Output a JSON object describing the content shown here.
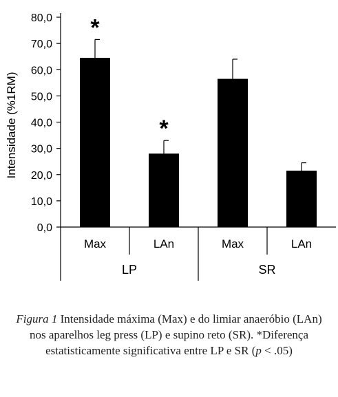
{
  "chart_data": {
    "type": "bar",
    "ylabel": "Intensidade (%1RM)",
    "ylim": [
      0,
      80
    ],
    "yticks": [
      "0,0",
      "10,0",
      "20,0",
      "30,0",
      "40,0",
      "50,0",
      "60,0",
      "70,0",
      "80,0"
    ],
    "groups": [
      "LP",
      "SR"
    ],
    "categories": [
      "Max",
      "LAn",
      "Max",
      "LAn"
    ],
    "values": [
      64.5,
      28.0,
      56.5,
      21.5
    ],
    "errors": [
      7.0,
      5.0,
      7.5,
      3.0
    ],
    "significance_marker": "*",
    "significant": [
      true,
      true,
      false,
      false
    ],
    "bar_color": "#000000",
    "grid": false
  },
  "caption": {
    "figure_label": "Figura 1",
    "text_1": " Intensidade máxima (Max) e do limiar anaeróbio (LAn) nos aparelhos leg press (LP) e supino reto (SR). *Diferença estatisticamente significativa entre LP e SR (",
    "p_symbol": "p",
    "text_2": " < .05)"
  }
}
